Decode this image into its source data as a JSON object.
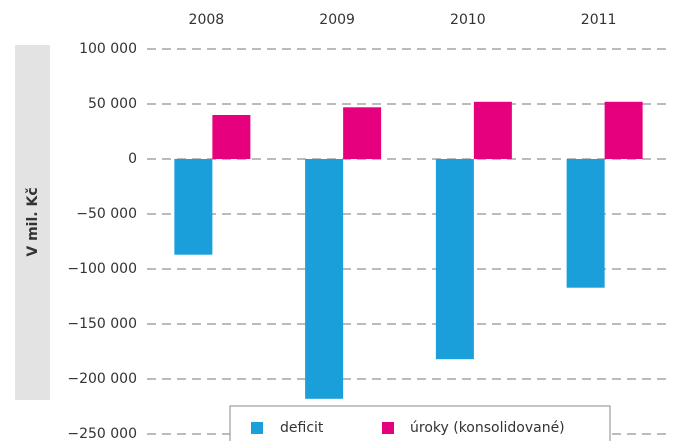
{
  "chart_data": {
    "type": "bar",
    "y_label": "V mil. Kč",
    "categories": [
      "2008",
      "2009",
      "2010",
      "2011"
    ],
    "series": [
      {
        "name": "deficit",
        "color": "#1a9fdb",
        "values": [
          -87000,
          -218000,
          -182000,
          -117000
        ]
      },
      {
        "name": "úroky (konsolidované)",
        "color": "#e6007e",
        "values": [
          40000,
          47000,
          52000,
          52000
        ]
      }
    ],
    "ylim": [
      -250000,
      100000
    ],
    "yticks": [
      {
        "value": 100000,
        "label": "100 000"
      },
      {
        "value": 50000,
        "label": "50 000"
      },
      0,
      {
        "value": -50000,
        "label": "−50 000"
      },
      {
        "value": -100000,
        "label": "−100 000"
      },
      {
        "value": -150000,
        "label": "−150 000"
      },
      {
        "value": -200000,
        "label": "−200 000"
      },
      {
        "value": -250000,
        "label": "−250 000"
      }
    ],
    "grid": true
  }
}
